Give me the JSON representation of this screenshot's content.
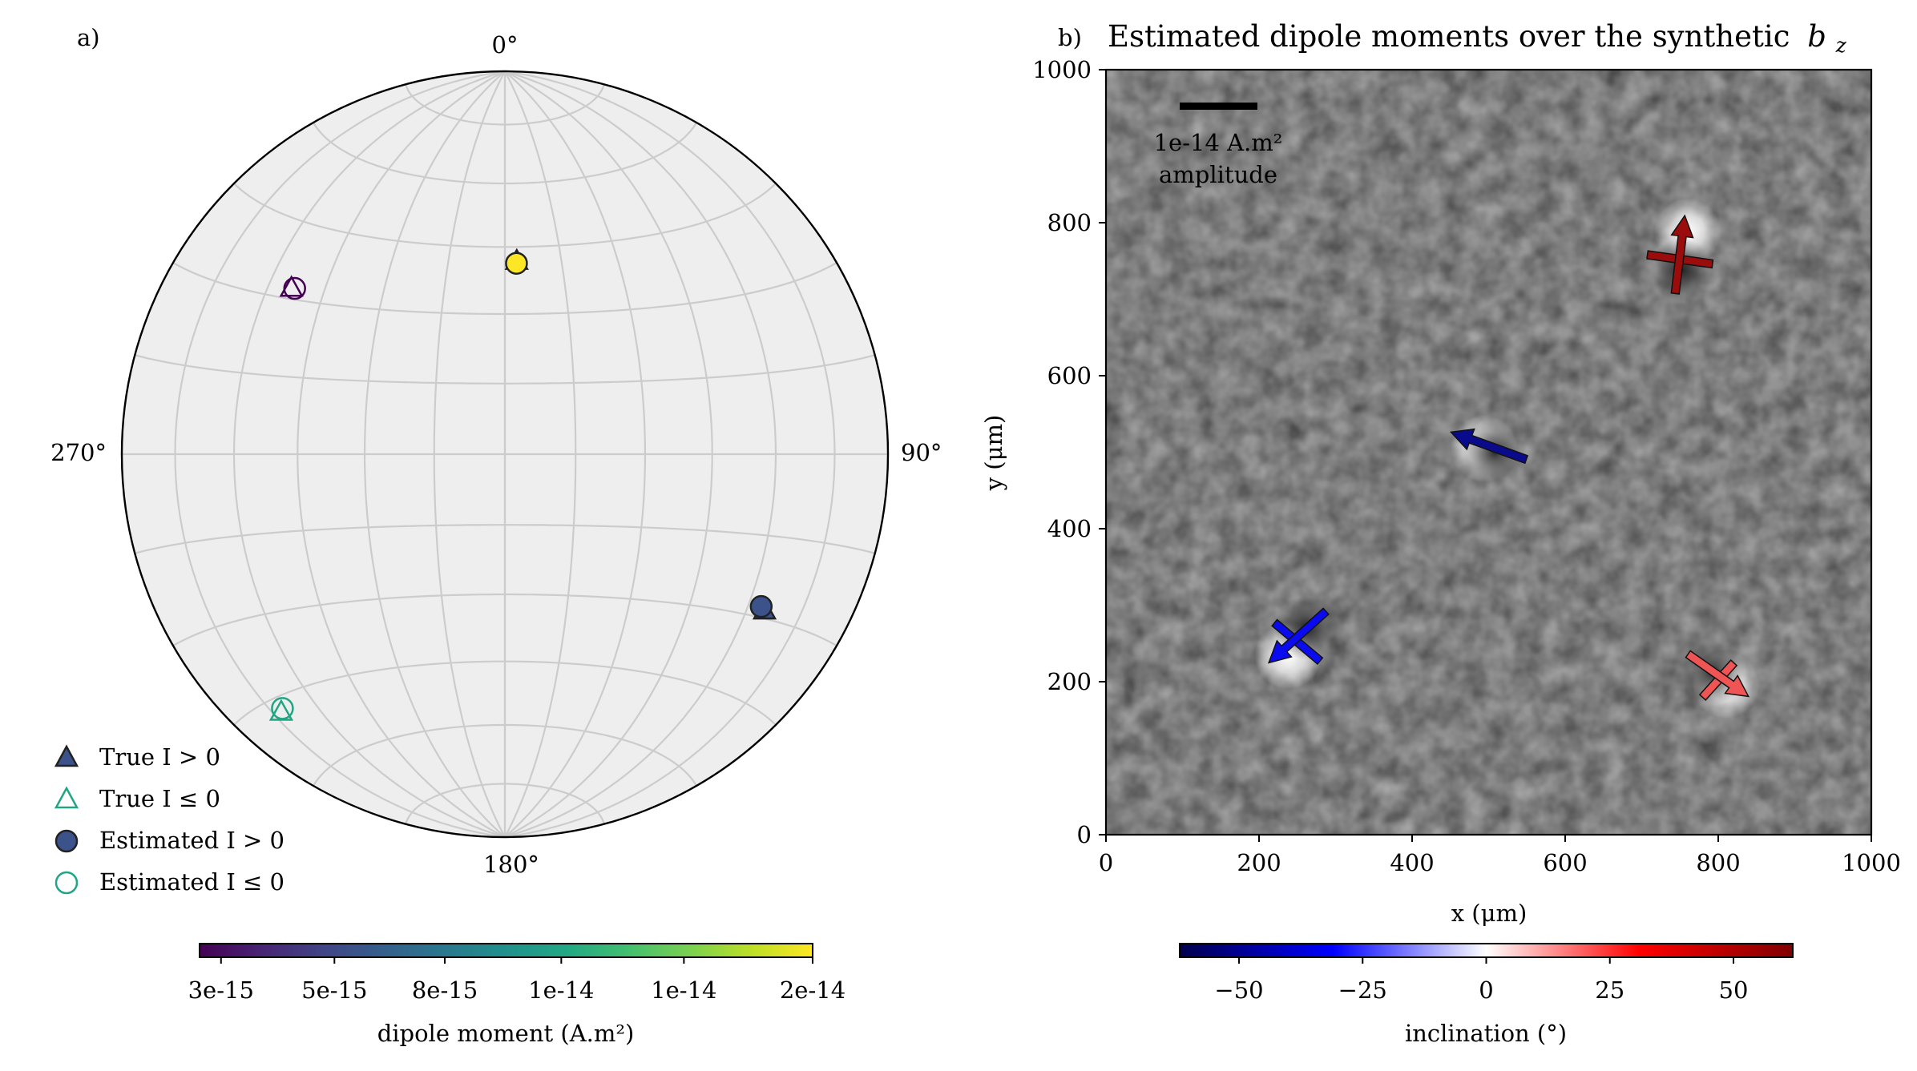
{
  "chart_data": [
    {
      "type": "scatter",
      "panel_label": "a)",
      "projection": "equal-area stereonet",
      "azimuth_labels": [
        "0°",
        "90°",
        "180°",
        "270°"
      ],
      "grid": true,
      "points": [
        {
          "name": "p1",
          "true": {
            "declination": 3.5,
            "inclination": 48,
            "positive": true
          },
          "estimated": {
            "declination": 3.5,
            "inclination": 49,
            "positive": true
          },
          "moment": 2e-14,
          "color": "#fde725"
        },
        {
          "name": "p2",
          "true": {
            "declination": 308,
            "inclination": 30,
            "positive": false
          },
          "estimated": {
            "declination": 308,
            "inclination": 31,
            "positive": false
          },
          "moment": 3e-15,
          "color": "#440154"
        },
        {
          "name": "p3",
          "true": {
            "declination": 221,
            "inclination": 12,
            "positive": false
          },
          "estimated": {
            "declination": 221,
            "inclination": 12.5,
            "positive": false
          },
          "moment": 1.1e-14,
          "color": "#21a585"
        },
        {
          "name": "p4",
          "true": {
            "declination": 121,
            "inclination": 22,
            "positive": true
          },
          "estimated": {
            "declination": 121,
            "inclination": 23,
            "positive": true
          },
          "moment": 6e-15,
          "color": "#3b528b"
        }
      ],
      "legend": [
        {
          "label": "True I > 0",
          "marker": "triangle-filled"
        },
        {
          "label": "True I ≤ 0",
          "marker": "triangle-open"
        },
        {
          "label": "Estimated I > 0",
          "marker": "circle-filled"
        },
        {
          "label": "Estimated I ≤ 0",
          "marker": "circle-open"
        }
      ],
      "legend_position": "lower-left",
      "colorbar": {
        "colormap": "viridis",
        "label": "dipole moment (A.m²)",
        "ticks": [
          "3e-15",
          "5e-15",
          "8e-15",
          "1e-14",
          "1e-14",
          "2e-14"
        ]
      }
    },
    {
      "type": "quiver",
      "panel_label": "b)",
      "title": "Estimated dipole moments over the synthetic",
      "title_math": "b",
      "title_sub": "z",
      "xlabel": "x (μm)",
      "ylabel": "y (μm)",
      "xlim": [
        0,
        1000
      ],
      "ylim": [
        0,
        1000
      ],
      "xticks": [
        "0",
        "200",
        "400",
        "600",
        "800",
        "1000"
      ],
      "yticks": [
        "0",
        "200",
        "400",
        "600",
        "800",
        "1000"
      ],
      "scale_bar": {
        "label": "1e-14 A.m²",
        "label2": "amplitude"
      },
      "sources": [
        {
          "x": 750,
          "y": 750,
          "inclination": 55,
          "color": "#9b0d0d",
          "anomaly_dark": [
            752,
            738
          ],
          "anomaly_bright": [
            760,
            788
          ]
        },
        {
          "x": 500,
          "y": 500,
          "inclination": -60,
          "color": "#0a0a8c",
          "anomaly_dark": [
            508,
            500
          ],
          "anomaly_bright": [
            494,
            505
          ]
        },
        {
          "x": 250,
          "y": 250,
          "inclination": -33,
          "color": "#0b0bf0",
          "anomaly_dark": [
            262,
            270
          ],
          "anomaly_bright": [
            238,
            234
          ]
        },
        {
          "x": 800,
          "y": 200,
          "inclination": 20,
          "color": "#f05555",
          "anomaly_dark": [
            793,
            212
          ],
          "anomaly_bright": [
            810,
            196
          ]
        }
      ],
      "colorbar": {
        "colormap": "seismic",
        "label": "inclination (°)",
        "range": [
          -62,
          62
        ],
        "ticks": [
          "−50",
          "−25",
          "0",
          "25",
          "50"
        ]
      }
    }
  ]
}
